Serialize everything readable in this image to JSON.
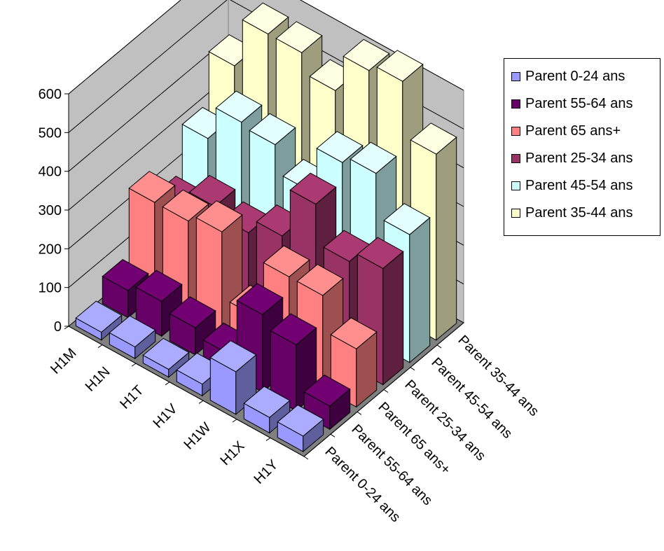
{
  "chart_data": {
    "type": "bar",
    "style": "3d-column",
    "categories": [
      "H1M",
      "H1N",
      "H1T",
      "H1V",
      "H1W",
      "H1X",
      "H1Y"
    ],
    "series_axis": [
      "Parent 0-24 ans",
      "Parent 55-64 ans",
      "Parent 65 ans+",
      "Parent 25-34 ans",
      "Parent 45-54 ans",
      "Parent 35-44 ans"
    ],
    "series": [
      {
        "name": "Parent 0-24 ans",
        "color": "#9999ff",
        "values": [
          20,
          30,
          20,
          30,
          110,
          40,
          40
        ]
      },
      {
        "name": "Parent 55-64 ans",
        "color": "#660066",
        "values": [
          70,
          90,
          70,
          50,
          200,
          170,
          60
        ]
      },
      {
        "name": "Parent 65 ans+",
        "color": "#ff8080",
        "values": [
          240,
          240,
          260,
          90,
          240,
          240,
          150
        ]
      },
      {
        "name": "Parent 25-34 ans",
        "color": "#993366",
        "values": [
          170,
          220,
          200,
          240,
          370,
          270,
          300
        ]
      },
      {
        "name": "Parent 45-54 ans",
        "color": "#ccffff",
        "values": [
          290,
          380,
          370,
          300,
          420,
          440,
          330
        ]
      },
      {
        "name": "Parent 35-44 ans",
        "color": "#ffffcc",
        "values": [
          420,
          550,
          550,
          500,
          600,
          620,
          480
        ]
      }
    ],
    "yticks": [
      "0",
      "100",
      "200",
      "300",
      "400",
      "500",
      "600"
    ],
    "ylim": [
      0,
      600
    ],
    "grid": true,
    "legend_position": "right"
  }
}
